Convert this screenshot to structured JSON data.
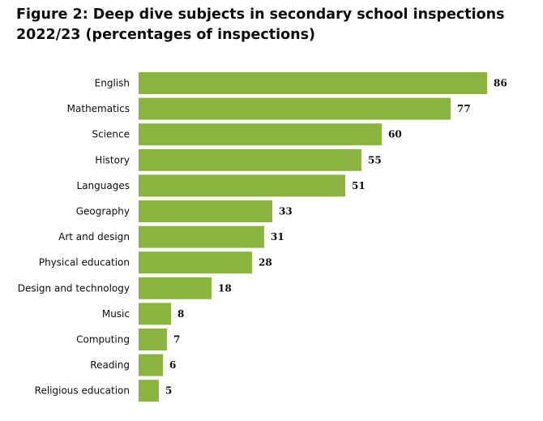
{
  "chart_data": {
    "type": "bar",
    "orientation": "horizontal",
    "title": "Figure 2: Deep dive subjects in secondary school inspections 2022/23 (percentages of inspections)",
    "xlabel": "",
    "ylabel": "",
    "xlim": [
      0,
      86
    ],
    "grid": false,
    "bar_color": "#8bb33f",
    "categories": [
      "English",
      "Mathematics",
      "Science",
      "History",
      "Languages",
      "Geography",
      "Art and design",
      "Physical education",
      "Design and technology",
      "Music",
      "Computing",
      "Reading",
      "Religious education"
    ],
    "values": [
      86,
      77,
      60,
      55,
      51,
      33,
      31,
      28,
      18,
      8,
      7,
      6,
      5
    ],
    "data_labels": [
      "86",
      "77",
      "60",
      "55",
      "51",
      "33",
      "31",
      "28",
      "18",
      "8",
      "7",
      "6",
      "5"
    ]
  }
}
